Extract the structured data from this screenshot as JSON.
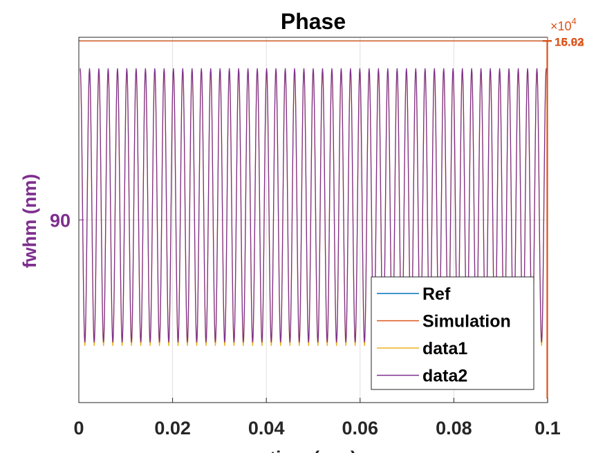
{
  "chart_data": {
    "type": "line",
    "title": "Phase",
    "xlabel": "time (sec)",
    "ylabel": "fwhm (nm)",
    "xlim": [
      0,
      0.1
    ],
    "x_ticks": [
      "0",
      "0.02",
      "0.04",
      "0.06",
      "0.08",
      "0.1"
    ],
    "y_left_ticks": [
      "90"
    ],
    "y_right_exponent_base": "10",
    "y_right_exponent_power": "4",
    "y_right_tick_labels": [
      "15.02",
      "16.93"
    ],
    "grid": true,
    "legend_position": "bottom-right",
    "oscillation_cycles": 50,
    "series": [
      {
        "name": "Ref",
        "color": "#0072bd",
        "axis": "right",
        "shape": "flat",
        "level": 0.99
      },
      {
        "name": "Simulation",
        "color": "#d95319",
        "axis": "right",
        "shape": "flat",
        "level": 0.99
      },
      {
        "name": "data1",
        "color": "#edb120",
        "axis": "left",
        "shape": "oscillating",
        "min_level": 0.155,
        "max_level": 0.91
      },
      {
        "name": "data2",
        "color": "#7e2f8e",
        "axis": "left",
        "shape": "oscillating",
        "min_level": 0.165,
        "max_level": 0.915
      }
    ]
  }
}
